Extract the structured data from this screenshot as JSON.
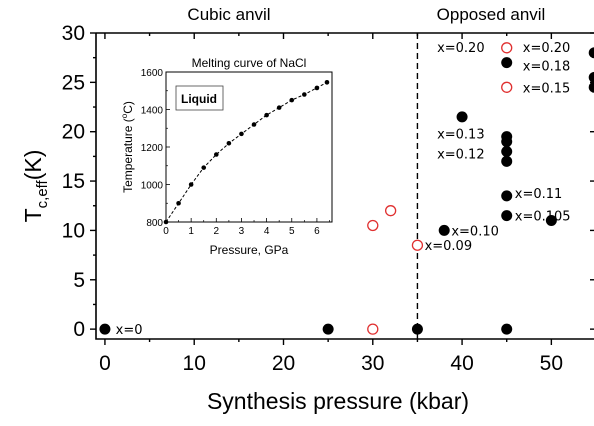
{
  "chart_data": [
    {
      "type": "scatter",
      "xlabel": "Synthesis pressure (kbar)",
      "ylabel_main": "T",
      "ylabel_sub": "c,eff",
      "ylabel_unit": "(K)",
      "xlim": [
        -1,
        55
      ],
      "ylim": [
        -1,
        30
      ],
      "xticks": [
        0,
        10,
        20,
        30,
        40,
        50
      ],
      "yticks": [
        0,
        5,
        10,
        15,
        20,
        25,
        30
      ],
      "region_labels": [
        "Cubic anvil",
        "Opposed anvil"
      ],
      "divider_x": 35,
      "series": [
        {
          "marker": "filled",
          "color": "#000000",
          "points": [
            {
              "x": 0,
              "y": 0
            },
            {
              "x": 25,
              "y": 0
            },
            {
              "x": 35,
              "y": 0
            },
            {
              "x": 45,
              "y": 0
            },
            {
              "x": 38,
              "y": 10
            },
            {
              "x": 40,
              "y": 21.5
            },
            {
              "x": 45,
              "y": 27
            },
            {
              "x": 45,
              "y": 19.5
            },
            {
              "x": 45,
              "y": 19
            },
            {
              "x": 45,
              "y": 18
            },
            {
              "x": 45,
              "y": 17
            },
            {
              "x": 45,
              "y": 13.5
            },
            {
              "x": 45,
              "y": 11.5
            },
            {
              "x": 50,
              "y": 11
            },
            {
              "x": 54.8,
              "y": 28
            },
            {
              "x": 54.8,
              "y": 25.5
            },
            {
              "x": 54.8,
              "y": 24.5
            }
          ]
        },
        {
          "marker": "open",
          "color": "#e03030",
          "points": [
            {
              "x": 30,
              "y": 0
            },
            {
              "x": 30,
              "y": 10.5
            },
            {
              "x": 32,
              "y": 12
            },
            {
              "x": 35,
              "y": 8.5
            },
            {
              "x": 45,
              "y": 28.5
            },
            {
              "x": 45,
              "y": 24.5
            }
          ]
        }
      ],
      "annotations": [
        {
          "text": "x=0",
          "x": 1.2,
          "y": 0
        },
        {
          "text": "x=0.09",
          "x": 35.8,
          "y": 8.5
        },
        {
          "text": "x=0.10",
          "x": 38.8,
          "y": 10
        },
        {
          "text": "x=0.105",
          "x": 45.9,
          "y": 11.5
        },
        {
          "text": "x=0.11",
          "x": 45.9,
          "y": 13.8
        },
        {
          "text": "x=0.12",
          "x": 37.2,
          "y": 17.8
        },
        {
          "text": "x=0.13",
          "x": 37.2,
          "y": 19.8
        },
        {
          "text": "x=0.15",
          "x": 46.8,
          "y": 24.5
        },
        {
          "text": "x=0.18",
          "x": 46.8,
          "y": 26.7
        },
        {
          "text": "x=0.20",
          "x": 46.8,
          "y": 28.6
        },
        {
          "text": "x=0.20",
          "x": 37.2,
          "y": 28.6
        }
      ]
    },
    {
      "type": "line",
      "title": "Melting curve of NaCl",
      "xlabel": "Pressure, GPa",
      "ylabel": "Temperature (°C)",
      "ylabel_parts": [
        "Temperature (",
        "o",
        "C)"
      ],
      "xlim": [
        0,
        6.6
      ],
      "ylim": [
        800,
        1600
      ],
      "xticks": [
        0,
        1,
        2,
        3,
        4,
        5,
        6
      ],
      "yticks": [
        800,
        1000,
        1200,
        1400,
        1600
      ],
      "minor_xticks": [
        0.5,
        1.5,
        2.5,
        3.5,
        4.5,
        5.5,
        6.5
      ],
      "minor_yticks": [
        900,
        1100,
        1300,
        1500
      ],
      "legend_text": "Liquid",
      "x": [
        0,
        0.5,
        1,
        1.5,
        2,
        2.5,
        3,
        3.5,
        4,
        4.5,
        5,
        5.5,
        6,
        6.4
      ],
      "y": [
        800,
        900,
        1000,
        1090,
        1160,
        1220,
        1270,
        1320,
        1370,
        1410,
        1450,
        1480,
        1515,
        1545
      ]
    }
  ]
}
